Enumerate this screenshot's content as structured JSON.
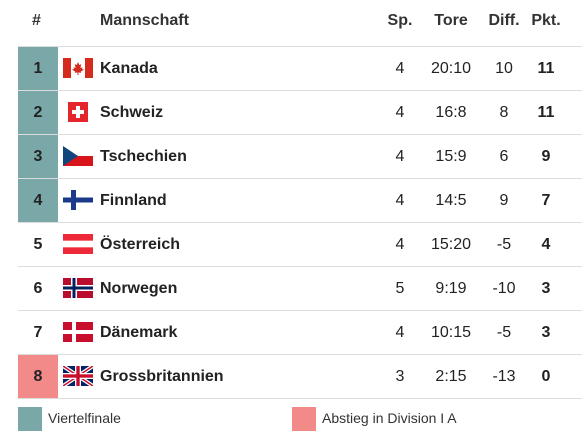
{
  "colors": {
    "qualify": "#7aa8a8",
    "relegate": "#f28a8a",
    "border": "#dcdcdc"
  },
  "header": {
    "rank": "#",
    "team": "Mannschaft",
    "games": "Sp.",
    "goals": "Tore",
    "diff": "Diff.",
    "points": "Pkt."
  },
  "rows": [
    {
      "rank": "1",
      "team": "Kanada",
      "flag": "canada-flag-icon",
      "games": "4",
      "goals": "20:10",
      "diff": "10",
      "points": "11",
      "status": "qualify"
    },
    {
      "rank": "2",
      "team": "Schweiz",
      "flag": "switzerland-flag-icon",
      "games": "4",
      "goals": "16:8",
      "diff": "8",
      "points": "11",
      "status": "qualify"
    },
    {
      "rank": "3",
      "team": "Tschechien",
      "flag": "czechia-flag-icon",
      "games": "4",
      "goals": "15:9",
      "diff": "6",
      "points": "9",
      "status": "qualify"
    },
    {
      "rank": "4",
      "team": "Finnland",
      "flag": "finland-flag-icon",
      "games": "4",
      "goals": "14:5",
      "diff": "9",
      "points": "7",
      "status": "qualify"
    },
    {
      "rank": "5",
      "team": "Österreich",
      "flag": "austria-flag-icon",
      "games": "4",
      "goals": "15:20",
      "diff": "-5",
      "points": "4",
      "status": "none"
    },
    {
      "rank": "6",
      "team": "Norwegen",
      "flag": "norway-flag-icon",
      "games": "5",
      "goals": "9:19",
      "diff": "-10",
      "points": "3",
      "status": "none"
    },
    {
      "rank": "7",
      "team": "Dänemark",
      "flag": "denmark-flag-icon",
      "games": "4",
      "goals": "10:15",
      "diff": "-5",
      "points": "3",
      "status": "none"
    },
    {
      "rank": "8",
      "team": "Grossbritannien",
      "flag": "great-britain-flag-icon",
      "games": "3",
      "goals": "2:15",
      "diff": "-13",
      "points": "0",
      "status": "relegate"
    }
  ],
  "legend": {
    "qualify_label": "Viertelfinale",
    "relegate_label": "Abstieg in Division I A"
  }
}
